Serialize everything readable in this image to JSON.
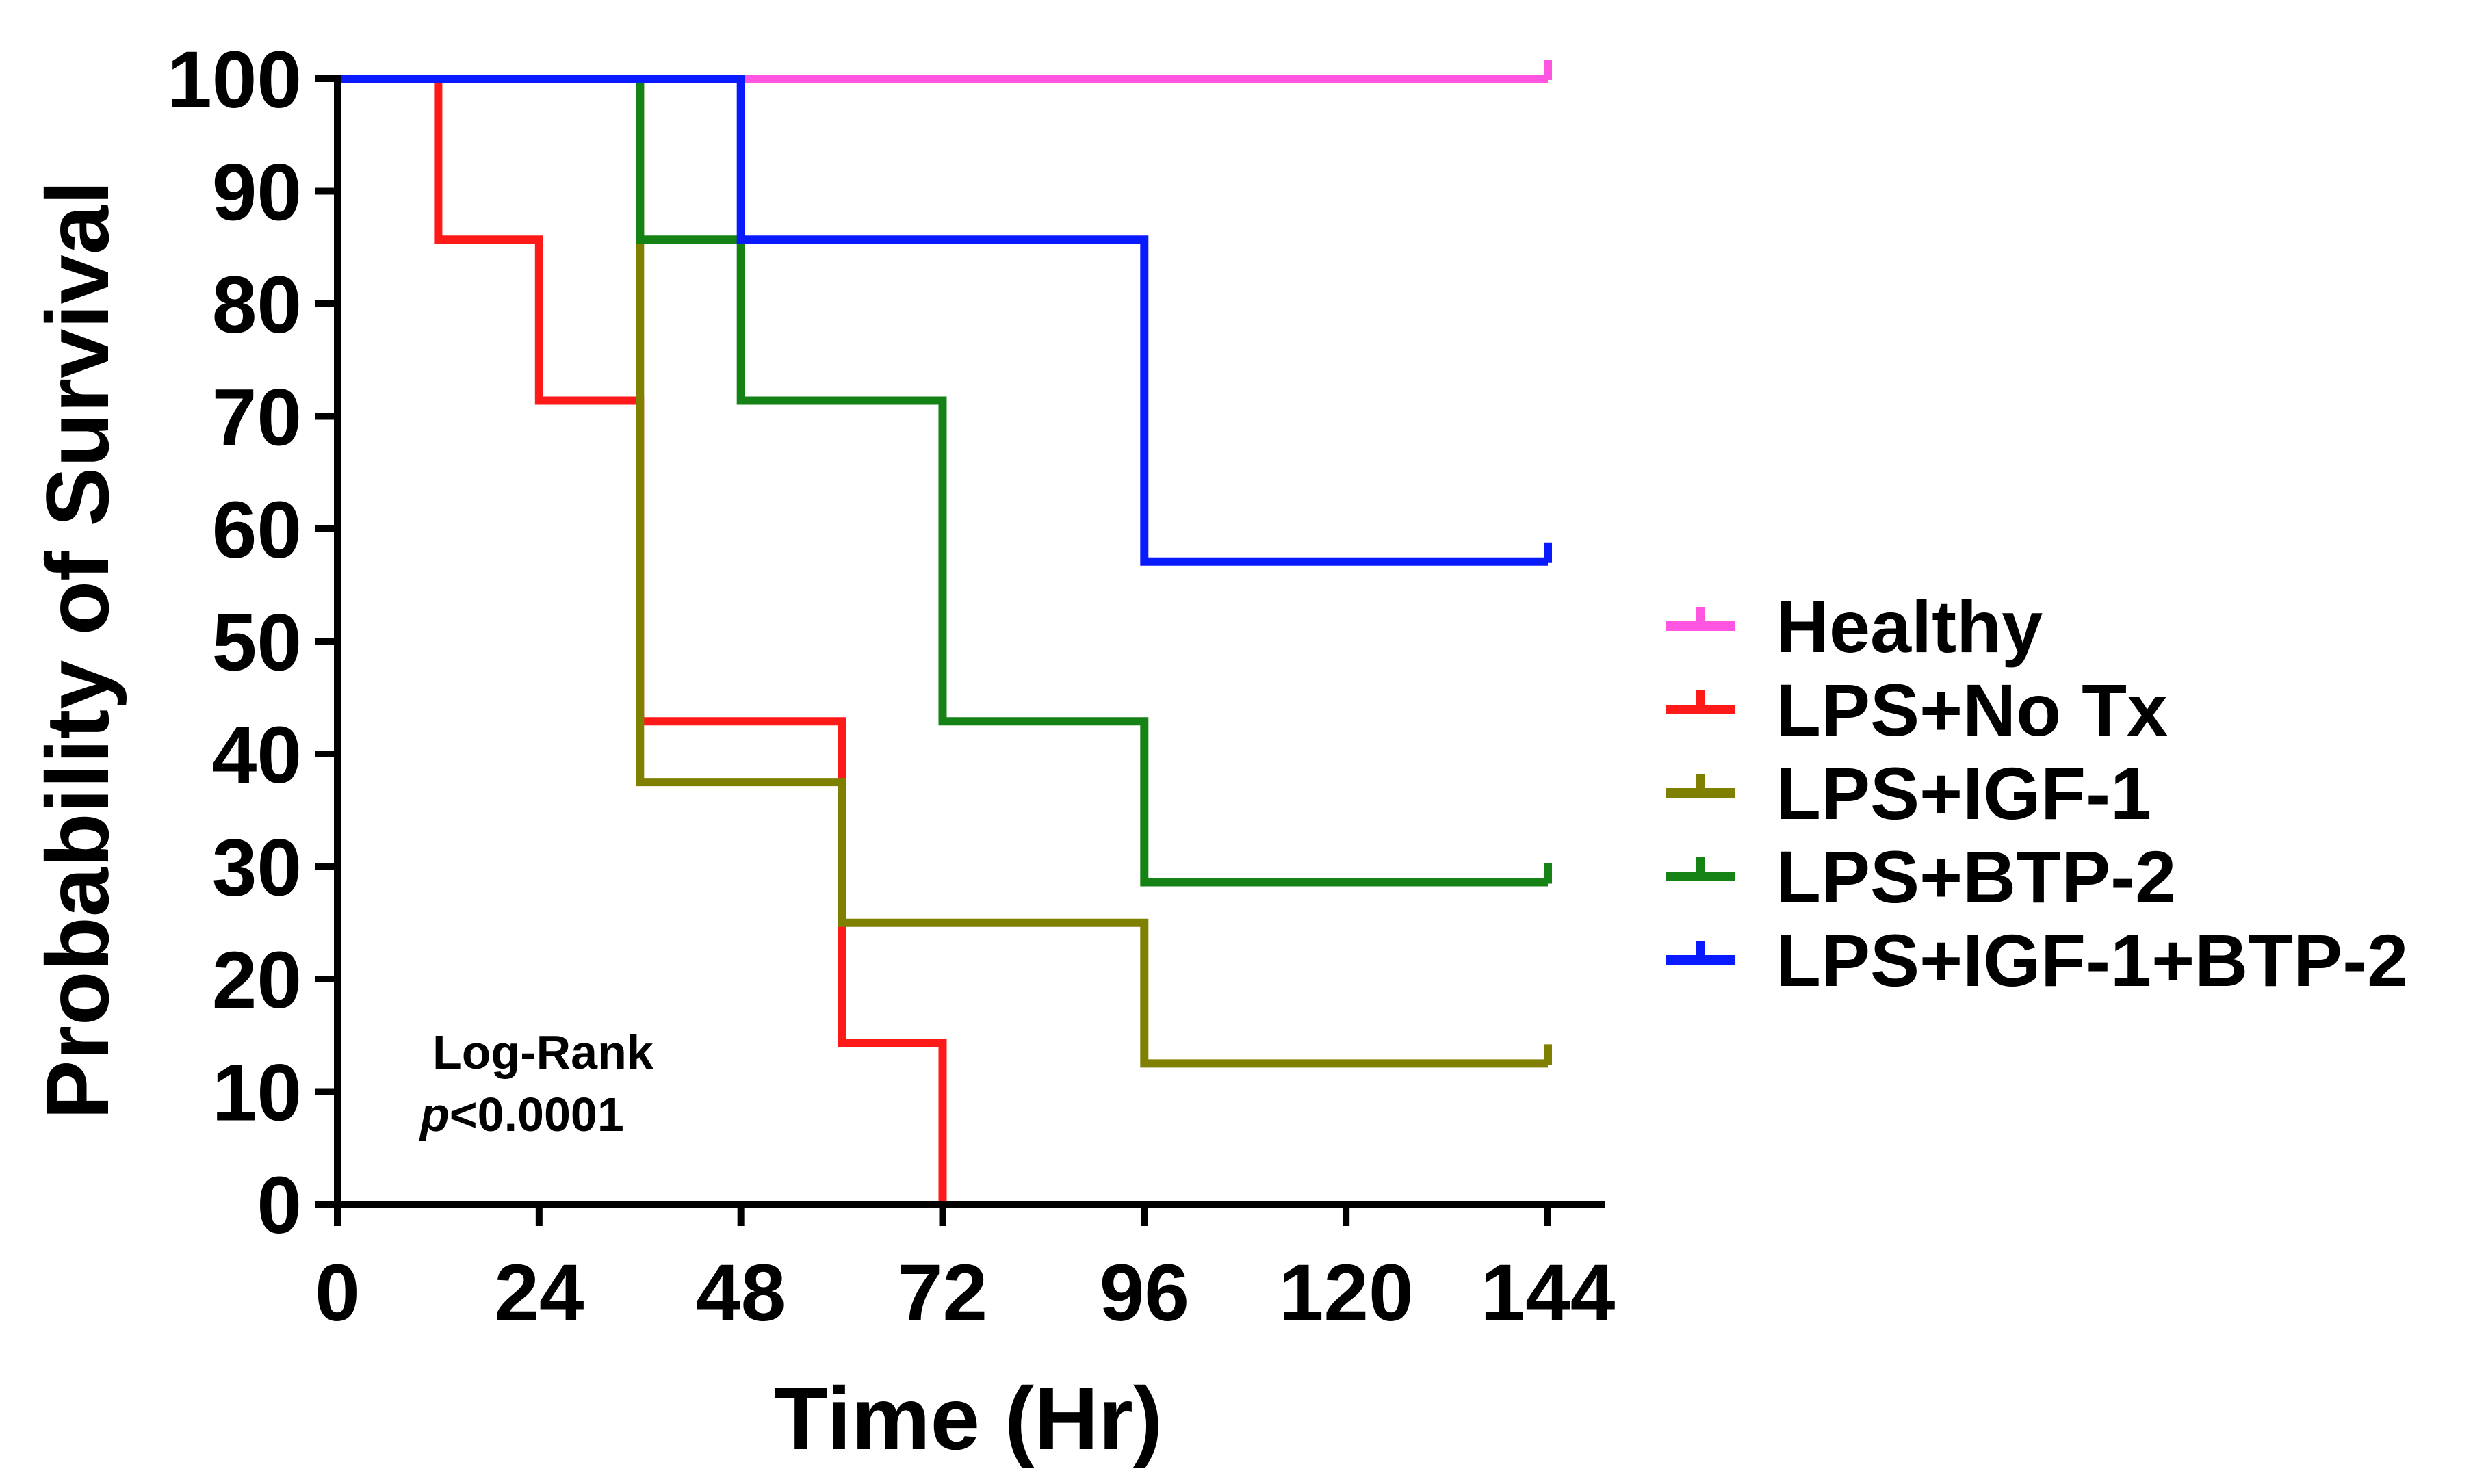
{
  "chart_data": {
    "type": "line",
    "step": true,
    "title": "",
    "xlabel": "Time (Hr)",
    "ylabel": "Probability of Survival",
    "xlim": [
      0,
      150
    ],
    "ylim": [
      0,
      100
    ],
    "xticks": [
      0,
      24,
      48,
      72,
      96,
      120,
      144
    ],
    "yticks": [
      0,
      10,
      20,
      30,
      40,
      50,
      60,
      70,
      80,
      90,
      100
    ],
    "legend_position": "right",
    "series": [
      {
        "name": "Healthy",
        "color": "#ff55e0",
        "points": [
          [
            0,
            100
          ],
          [
            144,
            100
          ]
        ],
        "censor_at": 144
      },
      {
        "name": "LPS+No Tx",
        "color": "#ff1a1a",
        "points": [
          [
            0,
            100
          ],
          [
            12,
            100
          ],
          [
            12,
            85.7
          ],
          [
            24,
            85.7
          ],
          [
            24,
            71.4
          ],
          [
            36,
            71.4
          ],
          [
            36,
            42.9
          ],
          [
            60,
            42.9
          ],
          [
            60,
            14.3
          ],
          [
            72,
            14.3
          ],
          [
            72,
            0
          ]
        ],
        "censor_at": null
      },
      {
        "name": "LPS+IGF-1",
        "color": "#808000",
        "points": [
          [
            0,
            100
          ],
          [
            36,
            100
          ],
          [
            36,
            37.5
          ],
          [
            60,
            37.5
          ],
          [
            60,
            25
          ],
          [
            96,
            25
          ],
          [
            96,
            12.5
          ],
          [
            144,
            12.5
          ]
        ],
        "censor_at": 144
      },
      {
        "name": "LPS+BTP-2",
        "color": "#148214",
        "points": [
          [
            0,
            100
          ],
          [
            36,
            100
          ],
          [
            36,
            85.7
          ],
          [
            48,
            85.7
          ],
          [
            48,
            71.4
          ],
          [
            72,
            71.4
          ],
          [
            72,
            42.9
          ],
          [
            96,
            42.9
          ],
          [
            96,
            28.6
          ],
          [
            144,
            28.6
          ]
        ],
        "censor_at": 144
      },
      {
        "name": "LPS+IGF-1+BTP-2",
        "color": "#0a1aff",
        "points": [
          [
            0,
            100
          ],
          [
            48,
            100
          ],
          [
            48,
            85.7
          ],
          [
            96,
            85.7
          ],
          [
            96,
            57.1
          ],
          [
            144,
            57.1
          ]
        ],
        "censor_at": 144
      }
    ],
    "annotation": {
      "line1": "Log-Rank",
      "p_symbol": "p",
      "p_value": "<0.0001"
    }
  }
}
